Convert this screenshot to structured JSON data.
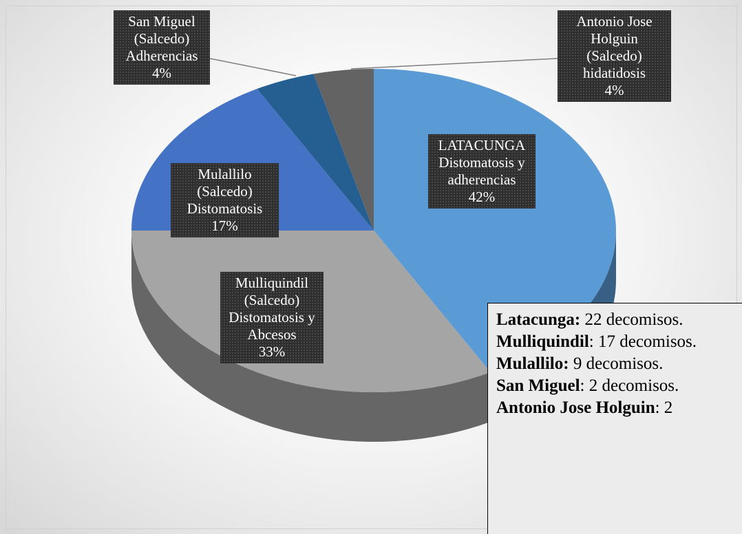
{
  "chart_data": {
    "type": "pie",
    "categories": [
      "LATACUNGA Distomatosis y adherencias",
      "Mulliquindil (Salcedo) Distomatosis y Abcesos",
      "Mulallilo (Salcedo) Distomatosis",
      "San Miguel (Salcedo) Adherencias",
      "Antonio Jose Holguin (Salcedo) hidatidosis"
    ],
    "values": [
      42,
      33,
      17,
      4,
      4
    ],
    "value_labels": [
      "42%",
      "33%",
      "17%",
      "4%",
      "4%"
    ],
    "colors": [
      "#5b9bd5",
      "#a5a5a5",
      "#4472c4",
      "#255e91",
      "#636363"
    ],
    "note": [
      {
        "bold": "Latacunga:",
        "text": " 22 decomisos."
      },
      {
        "bold": "Mulliquindil",
        "text": ": 17 decomisos."
      },
      {
        "bold": "Mulallilo:",
        "text": " 9 decomisos."
      },
      {
        "bold": "San Miguel",
        "text": ": 2 decomisos."
      },
      {
        "bold": "Antonio Jose Holguin",
        "text": ": 2"
      }
    ]
  }
}
